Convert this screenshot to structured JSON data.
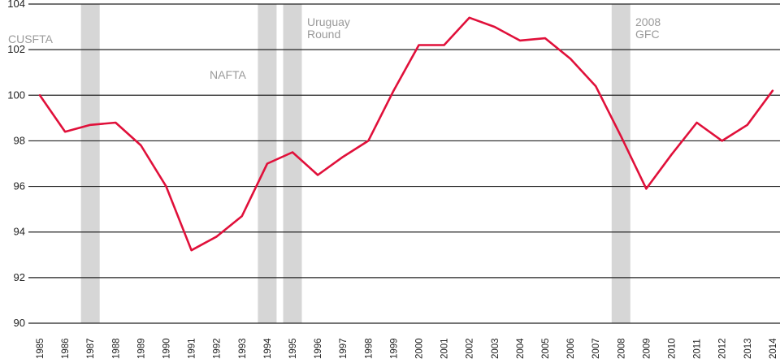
{
  "chart_data": {
    "type": "line",
    "title": "",
    "xlabel": "",
    "ylabel": "",
    "ylim": [
      90,
      104
    ],
    "yticks": [
      90,
      92,
      94,
      96,
      98,
      100,
      102,
      104
    ],
    "grid": "horizontal",
    "categories": [
      "1985",
      "1986",
      "1987",
      "1988",
      "1989",
      "1990",
      "1991",
      "1992",
      "1993",
      "1994",
      "1995",
      "1996",
      "1997",
      "1998",
      "1999",
      "2000",
      "2001",
      "2002",
      "2003",
      "2004",
      "2005",
      "2006",
      "2007",
      "2008",
      "2009",
      "2010",
      "2011",
      "2012",
      "2013",
      "2014"
    ],
    "series": [
      {
        "color": "#e0103a",
        "values": [
          100.0,
          98.4,
          98.7,
          98.8,
          97.8,
          96.0,
          93.2,
          93.8,
          94.7,
          97.0,
          97.5,
          96.5,
          97.3,
          98.0,
          100.2,
          102.2,
          102.2,
          103.4,
          103.0,
          102.4,
          102.5,
          101.6,
          100.4,
          98.2,
          95.9,
          97.4,
          98.8,
          98.0,
          98.7,
          100.2
        ]
      }
    ],
    "bands": [
      {
        "at": "1987",
        "label": "CUSFTA",
        "label_lines": [
          "CUSFTA"
        ]
      },
      {
        "at": "1994",
        "label": "NAFTA",
        "label_lines": [
          "NAFTA"
        ]
      },
      {
        "at": "1995",
        "label": "Uruguay Round",
        "label_lines": [
          "Uruguay",
          "Round"
        ]
      },
      {
        "at": "2008",
        "label": "2008 GFC",
        "label_lines": [
          "2008",
          "GFC"
        ]
      }
    ],
    "band_color": "#d6d6d6",
    "gridline_color": "#222222"
  }
}
